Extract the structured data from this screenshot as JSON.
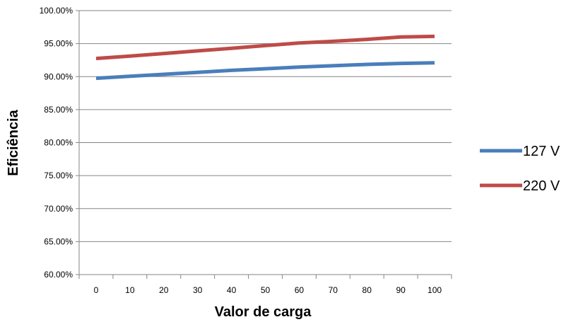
{
  "chart_data": {
    "type": "line",
    "title": "",
    "xlabel": "Valor de carga",
    "ylabel": "Eficiência",
    "x": [
      0,
      10,
      20,
      30,
      40,
      50,
      60,
      70,
      80,
      90,
      100
    ],
    "x_tick_labels": [
      "0",
      "10",
      "20",
      "30",
      "40",
      "50",
      "60",
      "70",
      "80",
      "90",
      "100"
    ],
    "y_ticks": [
      60,
      65,
      70,
      75,
      80,
      85,
      90,
      95,
      100
    ],
    "y_tick_labels": [
      "60.00%",
      "65.00%",
      "70.00%",
      "75.00%",
      "80.00%",
      "85.00%",
      "90.00%",
      "95.00%",
      "100.00%"
    ],
    "ylim": [
      60,
      100
    ],
    "grid": true,
    "legend": "right",
    "series": [
      {
        "name": "127 V",
        "color": "#4A7EBB",
        "values": [
          89.75,
          90.05,
          90.35,
          90.65,
          90.95,
          91.2,
          91.45,
          91.65,
          91.85,
          92.0,
          92.1
        ]
      },
      {
        "name": "220 V",
        "color": "#BE4B48",
        "values": [
          92.75,
          93.1,
          93.5,
          93.9,
          94.3,
          94.7,
          95.1,
          95.35,
          95.65,
          96.0,
          96.1
        ]
      }
    ]
  }
}
